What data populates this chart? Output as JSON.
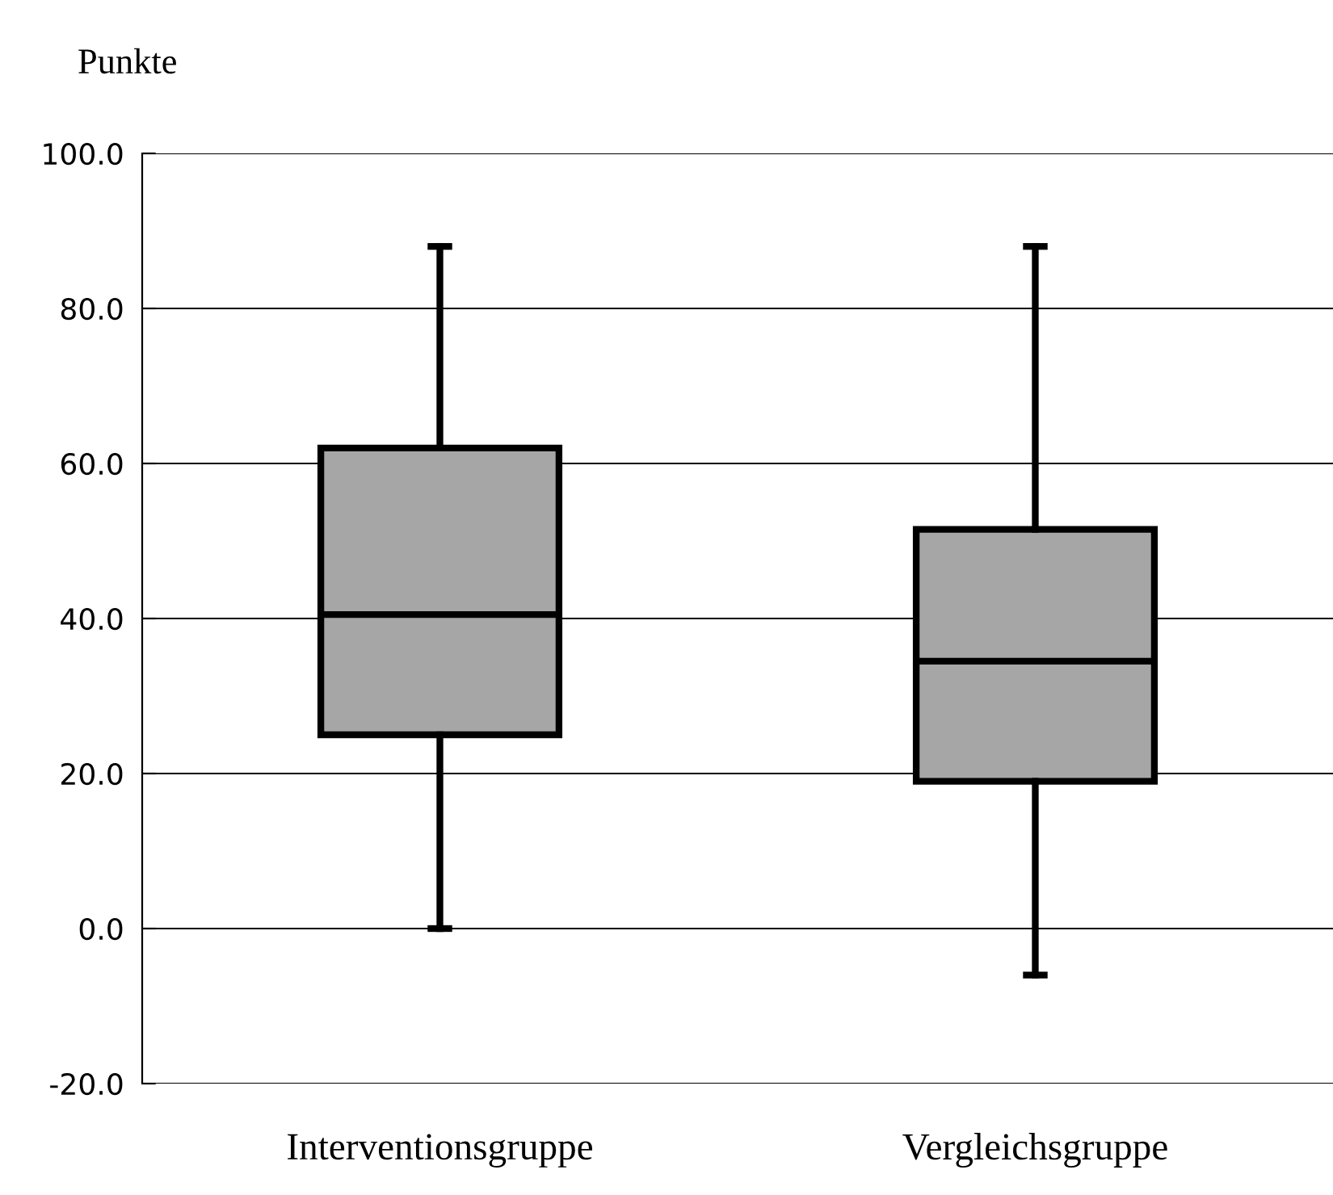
{
  "chart_data": {
    "type": "box",
    "ylabel": "Punkte",
    "categories": [
      "Interventionsgruppe",
      "Vergleichsgruppe"
    ],
    "boxes": [
      {
        "low": 0,
        "q1": 25,
        "median": 40.5,
        "q3": 62,
        "high": 88
      },
      {
        "low": -6,
        "q1": 19,
        "median": 34.5,
        "q3": 51.5,
        "high": 88
      }
    ],
    "color": "#a6a6a6",
    "ylim": [
      -20,
      100
    ],
    "yticks": [
      {
        "value": -20,
        "label": "-20.0"
      },
      {
        "value": 0,
        "label": "0.0"
      },
      {
        "value": 20,
        "label": "20.0"
      },
      {
        "value": 40,
        "label": "40.0"
      },
      {
        "value": 60,
        "label": "60.0"
      },
      {
        "value": 80,
        "label": "80.0"
      },
      {
        "value": 100,
        "label": "100.0"
      }
    ],
    "grid": "y"
  }
}
